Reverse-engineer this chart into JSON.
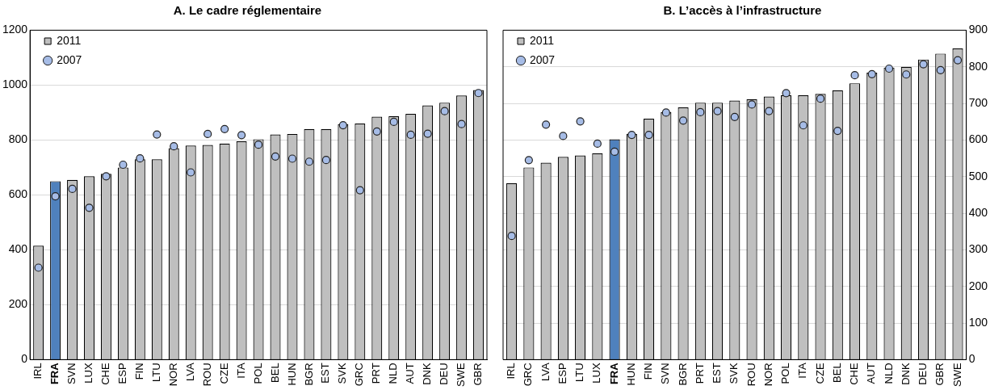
{
  "chart_data": [
    {
      "type": "bar",
      "title": "A. Le cadre réglementaire",
      "categories": [
        "IRL",
        "FRA",
        "SVN",
        "LUX",
        "CHE",
        "ESP",
        "FIN",
        "LTU",
        "NOR",
        "LVA",
        "ROU",
        "CZE",
        "ITA",
        "POL",
        "BEL",
        "HUN",
        "BGR",
        "EST",
        "SVK",
        "GRC",
        "PRT",
        "NLD",
        "AUT",
        "DNK",
        "DEU",
        "SWE",
        "GBR"
      ],
      "series": [
        {
          "name": "2011",
          "color": "#bfbfbf",
          "colors": [
            "#bfbfbf",
            "#4f81bd",
            "#bfbfbf",
            "#bfbfbf",
            "#bfbfbf",
            "#bfbfbf",
            "#bfbfbf",
            "#bfbfbf",
            "#bfbfbf",
            "#bfbfbf",
            "#bfbfbf",
            "#bfbfbf",
            "#bfbfbf",
            "#bfbfbf",
            "#bfbfbf",
            "#bfbfbf",
            "#bfbfbf",
            "#bfbfbf",
            "#bfbfbf",
            "#bfbfbf",
            "#bfbfbf",
            "#bfbfbf",
            "#bfbfbf",
            "#bfbfbf",
            "#bfbfbf",
            "#bfbfbf",
            "#bfbfbf"
          ],
          "values": [
            415,
            650,
            655,
            668,
            677,
            700,
            730,
            730,
            770,
            780,
            782,
            787,
            795,
            803,
            820,
            822,
            840,
            840,
            858,
            860,
            885,
            887,
            895,
            926,
            936,
            962,
            982
          ]
        },
        {
          "name": "2007",
          "type": "scatter",
          "color": "#a6bce6",
          "x": [
            "IRL",
            "FRA",
            "SVN",
            "LUX",
            "CHE",
            "ESP",
            "FIN",
            "LTU",
            "NOR",
            "LVA",
            "ROU",
            "CZE",
            "ITA",
            "POL",
            "BEL",
            "HUN",
            "BGR",
            "EST",
            "SVK",
            "GRC",
            "PRT",
            "NLD",
            "AUT",
            "DNK",
            "DEU",
            "SWE",
            "GBR"
          ],
          "values": [
            335,
            595,
            622,
            553,
            668,
            710,
            733,
            820,
            777,
            682,
            822,
            840,
            818,
            783,
            740,
            732,
            721,
            727,
            854,
            617,
            831,
            866,
            819,
            823,
            905,
            858,
            971
          ]
        }
      ],
      "ylim": [
        0,
        1200
      ],
      "yticks": [
        0,
        200,
        400,
        600,
        800,
        1000,
        1200
      ],
      "grid": "y",
      "legend": "top left",
      "marker": "circle"
    },
    {
      "type": "bar",
      "title": "B. L’accès à l’infrastructure",
      "categories": [
        "IRL",
        "GRC",
        "LVA",
        "ESP",
        "LTU",
        "LUX",
        "FRA",
        "HUN",
        "FIN",
        "SVN",
        "BGR",
        "PRT",
        "EST",
        "SVK",
        "ROU",
        "NOR",
        "POL",
        "ITA",
        "CZE",
        "BEL",
        "CHE",
        "AUT",
        "NLD",
        "DNK",
        "DEU",
        "GBR",
        "SWE"
      ],
      "series": [
        {
          "name": "2011",
          "axis": "y2",
          "color": "#bfbfbf",
          "colors": [
            "#bfbfbf",
            "#bfbfbf",
            "#bfbfbf",
            "#bfbfbf",
            "#bfbfbf",
            "#bfbfbf",
            "#4f81bd",
            "#bfbfbf",
            "#bfbfbf",
            "#bfbfbf",
            "#bfbfbf",
            "#bfbfbf",
            "#bfbfbf",
            "#bfbfbf",
            "#bfbfbf",
            "#bfbfbf",
            "#bfbfbf",
            "#bfbfbf",
            "#bfbfbf",
            "#bfbfbf",
            "#bfbfbf",
            "#bfbfbf",
            "#bfbfbf",
            "#bfbfbf",
            "#bfbfbf",
            "#bfbfbf",
            "#bfbfbf"
          ],
          "values": [
            482,
            525,
            538,
            554,
            558,
            564,
            602,
            617,
            658,
            676,
            689,
            702,
            702,
            708,
            711,
            719,
            722,
            722,
            726,
            736,
            755,
            784,
            798,
            800,
            820,
            836,
            850
          ]
        },
        {
          "name": "2007",
          "type": "scatter",
          "axis": "y2",
          "color": "#a6bce6",
          "x": [
            "IRL",
            "GRC",
            "LVA",
            "ESP",
            "LTU",
            "LUX",
            "FRA",
            "HUN",
            "FIN",
            "SVN",
            "BGR",
            "PRT",
            "EST",
            "SVK",
            "ROU",
            "NOR",
            "POL",
            "ITA",
            "CZE",
            "BEL",
            "CHE",
            "AUT",
            "NLD",
            "DNK",
            "DEU",
            "GBR",
            "SWE"
          ],
          "values": [
            338,
            545,
            642,
            611,
            651,
            590,
            568,
            614,
            614,
            675,
            653,
            676,
            679,
            663,
            697,
            679,
            728,
            640,
            713,
            625,
            777,
            780,
            795,
            779,
            807,
            791,
            818
          ]
        }
      ],
      "y2lim": [
        0,
        900
      ],
      "y2ticks": [
        0,
        100,
        200,
        300,
        400,
        500,
        600,
        700,
        800,
        900
      ],
      "grid": "y",
      "legend": "top left",
      "marker": "circle"
    }
  ]
}
